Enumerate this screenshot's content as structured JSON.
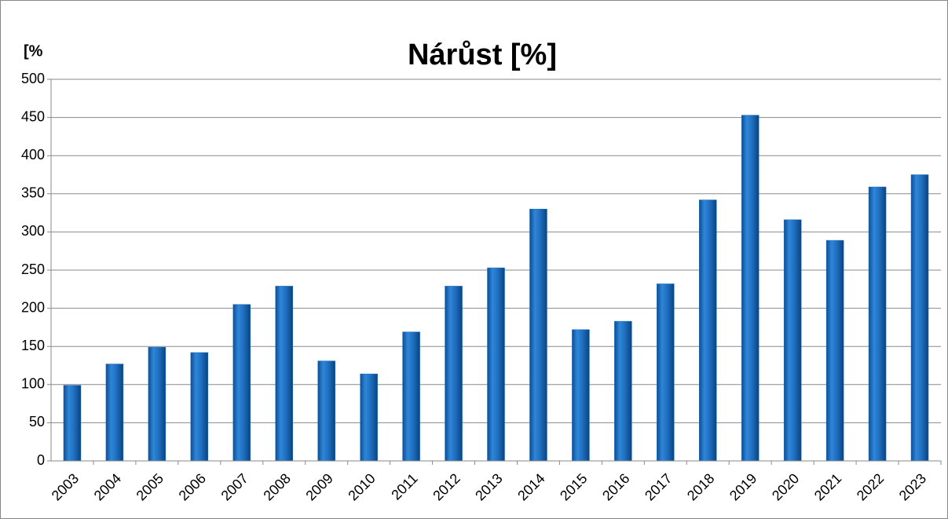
{
  "chart_data": {
    "type": "bar",
    "title": "Nárůst [%]",
    "y_label": "[%",
    "categories": [
      "2003",
      "2004",
      "2005",
      "2006",
      "2007",
      "2008",
      "2009",
      "2010",
      "2011",
      "2012",
      "2013",
      "2014",
      "2015",
      "2016",
      "2017",
      "2018",
      "2019",
      "2020",
      "2021",
      "2022",
      "2023"
    ],
    "values": [
      99,
      127,
      149,
      142,
      205,
      229,
      131,
      114,
      169,
      229,
      253,
      330,
      172,
      183,
      232,
      342,
      453,
      316,
      289,
      359,
      375
    ],
    "color": "#1f6fc0",
    "ylim": [
      0,
      500
    ],
    "yticks": [
      0,
      50,
      100,
      150,
      200,
      250,
      300,
      350,
      400,
      450,
      500
    ],
    "grid": true
  }
}
